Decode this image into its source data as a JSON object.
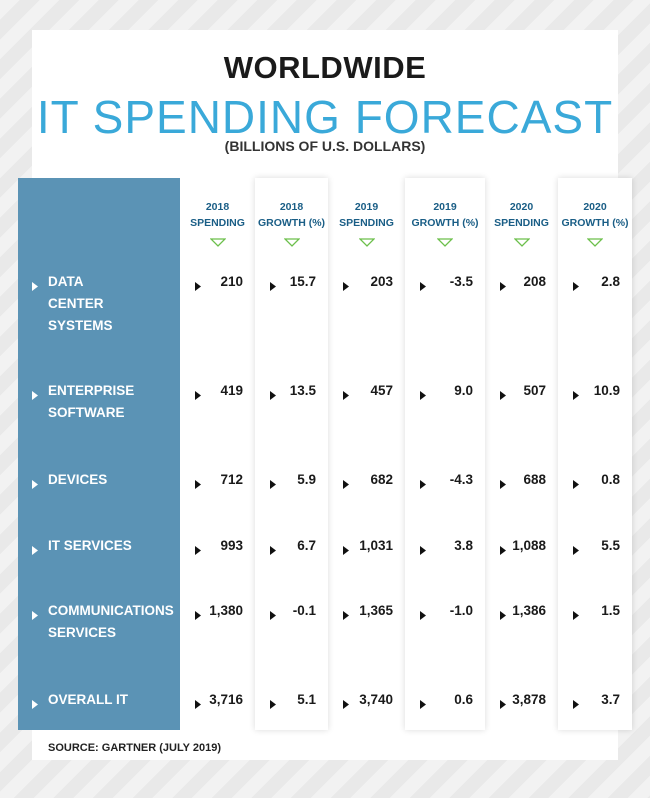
{
  "header": {
    "title": "WORLDWIDE",
    "subtitle": "IT SPENDING FORECAST",
    "note": "(BILLIONS OF U.S. DOLLARS)"
  },
  "table": {
    "columns": [
      [
        "2018",
        "SPENDING"
      ],
      [
        "2018",
        "GROWTH (%)"
      ],
      [
        "2019",
        "SPENDING"
      ],
      [
        "2019",
        "GROWTH (%)"
      ],
      [
        "2020",
        "SPENDING"
      ],
      [
        "2020",
        "GROWTH (%)"
      ]
    ],
    "rows": [
      {
        "label": [
          "DATA",
          "CENTER",
          "SYSTEMS"
        ],
        "cells": [
          "210",
          "15.7",
          "203",
          "-3.5",
          "208",
          "2.8"
        ]
      },
      {
        "label": [
          "ENTERPRISE",
          "SOFTWARE"
        ],
        "cells": [
          "419",
          "13.5",
          "457",
          "9.0",
          "507",
          "10.9"
        ]
      },
      {
        "label": [
          "DEVICES"
        ],
        "cells": [
          "712",
          "5.9",
          "682",
          "-4.3",
          "688",
          "0.8"
        ]
      },
      {
        "label": [
          "IT SERVICES"
        ],
        "cells": [
          "993",
          "6.7",
          "1,031",
          "3.8",
          "1,088",
          "5.5"
        ]
      },
      {
        "label": [
          "COMMUNICATIONS",
          "SERVICES"
        ],
        "cells": [
          "1,380",
          "-0.1",
          "1,365",
          "-1.0",
          "1,386",
          "1.5"
        ]
      },
      {
        "label": [
          "OVERALL IT"
        ],
        "cells": [
          "3,716",
          "5.1",
          "3,740",
          "0.6",
          "3,878",
          "3.7"
        ]
      }
    ]
  },
  "footer": {
    "source": "SOURCE: GARTNER (JULY 2019)"
  }
}
